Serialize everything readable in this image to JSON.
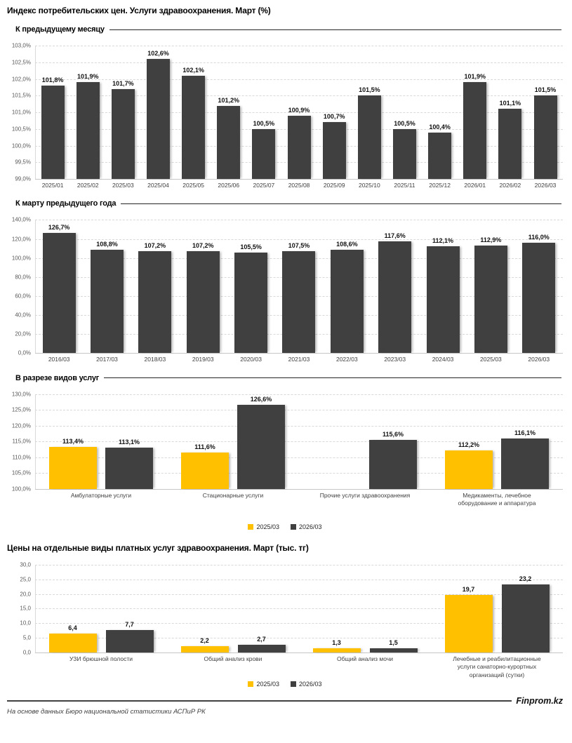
{
  "page": {
    "title": "Индекс потребительских цен. Услуги здравоохранения. Март (%)",
    "source_note": "На основе данных Бюро национальной статистики АСПиР РК",
    "brand": "Finprom.kz"
  },
  "colors": {
    "accent_yellow": "#FFC000",
    "bar_dark": "#404040",
    "grid": "#D9D9D9"
  },
  "chart_data": [
    {
      "type": "bar",
      "section_title": "К предыдущему месяцу",
      "categories": [
        "2025/01",
        "2025/02",
        "2025/03",
        "2025/04",
        "2025/05",
        "2025/06",
        "2025/07",
        "2025/08",
        "2025/09",
        "2025/10",
        "2025/11",
        "2025/12",
        "2026/01",
        "2026/02",
        "2026/03"
      ],
      "values": [
        101.8,
        101.9,
        101.7,
        102.6,
        102.1,
        101.2,
        100.5,
        100.9,
        100.7,
        101.5,
        100.5,
        100.4,
        101.9,
        101.1,
        101.5
      ],
      "labels": [
        "101,8%",
        "101,9%",
        "101,7%",
        "102,6%",
        "102,1%",
        "101,2%",
        "100,5%",
        "100,9%",
        "100,7%",
        "101,5%",
        "100,5%",
        "100,4%",
        "101,9%",
        "101,1%",
        "101,5%"
      ],
      "bar_color": "#404040",
      "ylim": [
        99,
        103
      ],
      "yticks": [
        "103,0%",
        "102,5%",
        "102,0%",
        "101,5%",
        "101,0%",
        "100,5%",
        "100,0%",
        "99,5%",
        "99,0%"
      ],
      "grid": true
    },
    {
      "type": "bar",
      "section_title": "К марту предыдущего года",
      "categories": [
        "2016/03",
        "2017/03",
        "2018/03",
        "2019/03",
        "2020/03",
        "2021/03",
        "2022/03",
        "2023/03",
        "2024/03",
        "2025/03",
        "2026/03"
      ],
      "values": [
        126.7,
        108.8,
        107.2,
        107.2,
        105.5,
        107.5,
        108.6,
        117.6,
        112.1,
        112.9,
        116.0
      ],
      "labels": [
        "126,7%",
        "108,8%",
        "107,2%",
        "107,2%",
        "105,5%",
        "107,5%",
        "108,6%",
        "117,6%",
        "112,1%",
        "112,9%",
        "116,0%"
      ],
      "bar_color": "#404040",
      "ylim": [
        0,
        140
      ],
      "yticks": [
        "140,0%",
        "120,0%",
        "100,0%",
        "80,0%",
        "60,0%",
        "40,0%",
        "20,0%",
        "0,0%"
      ],
      "grid": true
    },
    {
      "type": "grouped_bar",
      "section_title": "В разрезе видов услуг",
      "categories": [
        "Амбулаторные услуги",
        "Стационарные услуги",
        "Прочие услуги здравоохранения",
        "Медикаменты, лечебное оборудование и аппаратура"
      ],
      "series": [
        {
          "name": "2025/03",
          "color": "#FFC000",
          "values": [
            113.4,
            111.6,
            null,
            112.2
          ],
          "labels": [
            "113,4%",
            "111,6%",
            null,
            "112,2%"
          ]
        },
        {
          "name": "2026/03",
          "color": "#404040",
          "values": [
            113.1,
            126.6,
            115.6,
            116.1
          ],
          "labels": [
            "113,1%",
            "126,6%",
            "115,6%",
            "116,1%"
          ]
        }
      ],
      "ylim": [
        100,
        130
      ],
      "yticks": [
        "130,0%",
        "125,0%",
        "120,0%",
        "115,0%",
        "110,0%",
        "105,0%",
        "100,0%"
      ],
      "legend": [
        "2025/03",
        "2026/03"
      ],
      "legend_position": "bottom-center",
      "grid": true
    },
    {
      "type": "grouped_bar",
      "title": "Цены на отдельные виды платных услуг здравоохранения. Март (тыс. тг)",
      "categories": [
        "УЗИ брюшной полости",
        "Общий анализ крови",
        "Общий анализ мочи",
        "Лечебные и реабилитационные услуги санаторно-курортных организаций (сутки)"
      ],
      "series": [
        {
          "name": "2025/03",
          "color": "#FFC000",
          "values": [
            6.4,
            2.2,
            1.3,
            19.7
          ],
          "labels": [
            "6,4",
            "2,2",
            "1,3",
            "19,7"
          ]
        },
        {
          "name": "2026/03",
          "color": "#404040",
          "values": [
            7.7,
            2.7,
            1.5,
            23.2
          ],
          "labels": [
            "7,7",
            "2,7",
            "1,5",
            "23,2"
          ]
        }
      ],
      "ylim": [
        0,
        30
      ],
      "yticks": [
        "30,0",
        "25,0",
        "20,0",
        "15,0",
        "10,0",
        "5,0",
        "0,0"
      ],
      "legend": [
        "2025/03",
        "2026/03"
      ],
      "legend_position": "bottom-center",
      "grid": true
    }
  ]
}
